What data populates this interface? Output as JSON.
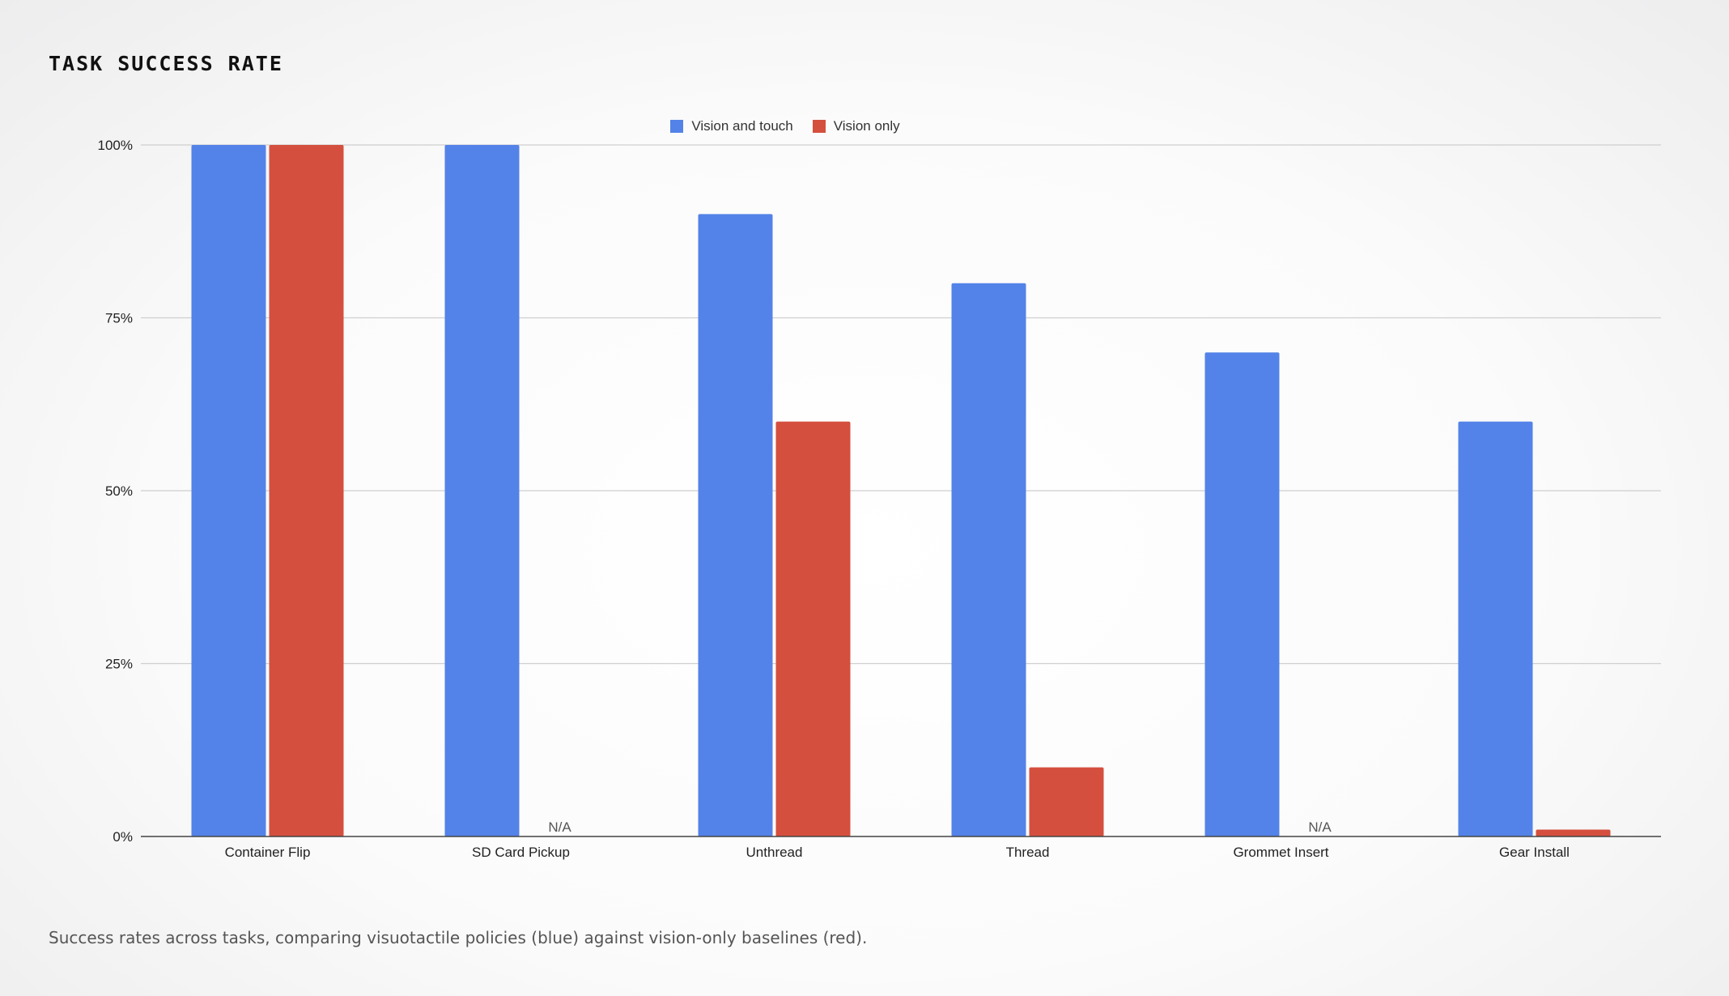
{
  "page": {
    "title": "TASK SUCCESS RATE",
    "caption": "Success rates across tasks, comparing visuotactile policies (blue) against vision-only baselines (red)."
  },
  "chart_data": {
    "type": "bar",
    "title": "",
    "xlabel": "",
    "ylabel": "",
    "categories": [
      "Container Flip",
      "SD Card Pickup",
      "Unthread",
      "Thread",
      "Grommet Insert",
      "Gear Install"
    ],
    "series": [
      {
        "name": "Vision and touch",
        "color": "#5383E8",
        "values": [
          100,
          100,
          90,
          80,
          70,
          60
        ]
      },
      {
        "name": "Vision only",
        "color": "#D54F3E",
        "values": [
          100,
          null,
          60,
          10,
          null,
          1
        ]
      }
    ],
    "missing_label": "N/A",
    "ylim": [
      0,
      100
    ],
    "yticks": [
      0,
      25,
      50,
      75,
      100
    ],
    "ytick_labels": [
      "0%",
      "25%",
      "50%",
      "75%",
      "100%"
    ],
    "grid": true,
    "legend_position": "top-center"
  }
}
